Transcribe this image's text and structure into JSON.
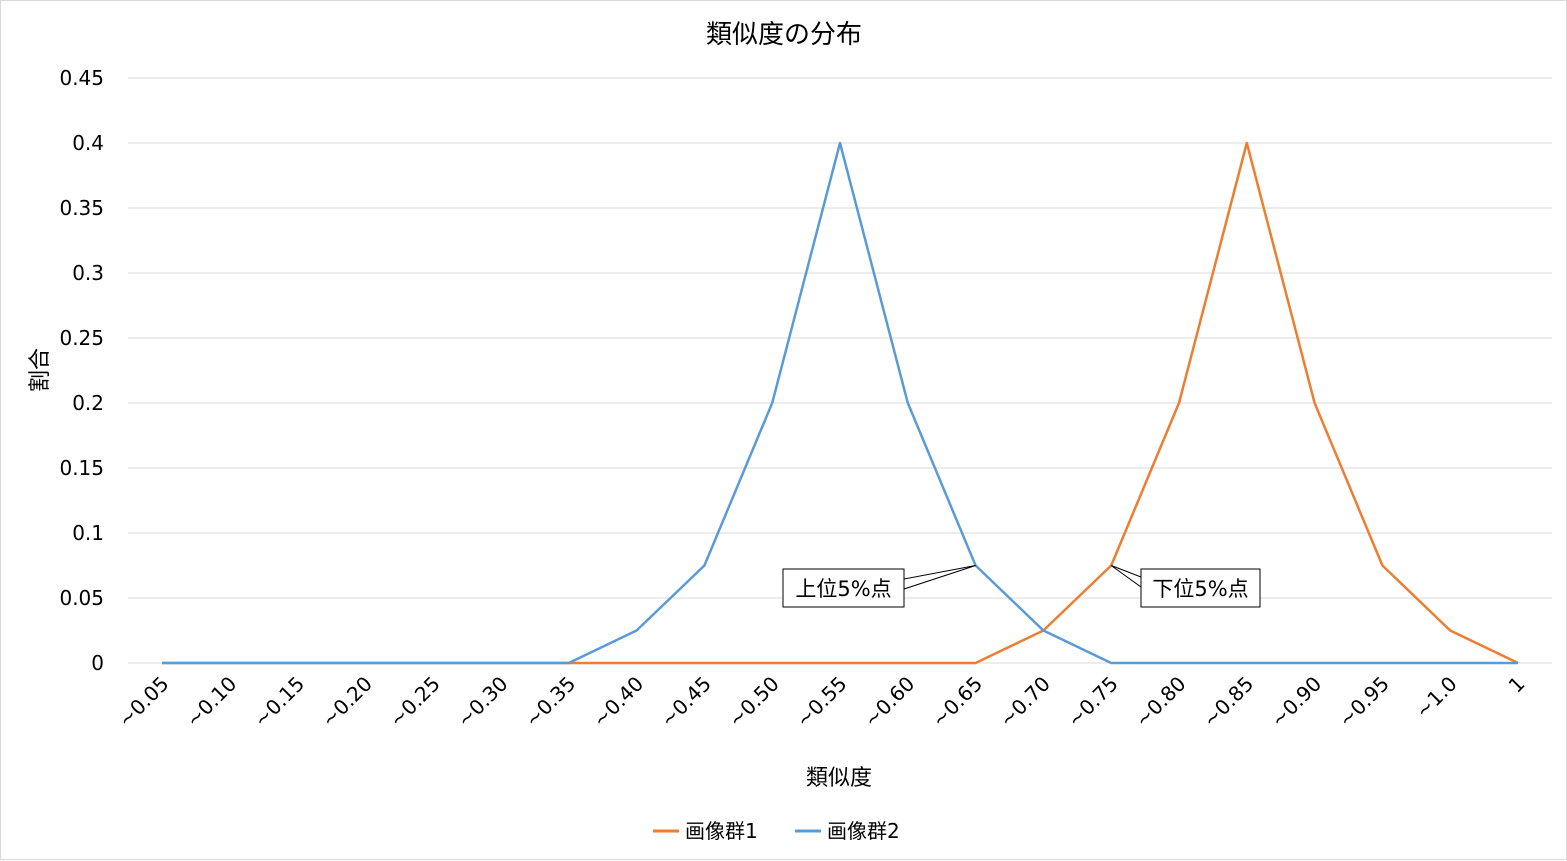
{
  "chart_data": {
    "type": "line",
    "title": "類似度の分布",
    "xlabel": "類似度",
    "ylabel": "割合",
    "ylim": [
      0,
      0.45
    ],
    "yticks": [
      "0",
      "0.05",
      "0.1",
      "0.15",
      "0.2",
      "0.25",
      "0.3",
      "0.35",
      "0.4",
      "0.45"
    ],
    "categories": [
      "~0.05",
      "~0.10",
      "~0.15",
      "~0.20",
      "~0.25",
      "~0.30",
      "~0.35",
      "~0.40",
      "~0.45",
      "~0.50",
      "~0.55",
      "~0.60",
      "~0.65",
      "~0.70",
      "~0.75",
      "~0.80",
      "~0.85",
      "~0.90",
      "~0.95",
      "~1.0",
      "1"
    ],
    "series": [
      {
        "name": "画像群1",
        "color": "#ed7d31",
        "values": [
          0,
          0,
          0,
          0,
          0,
          0,
          0,
          0,
          0,
          0,
          0,
          0,
          0,
          0.025,
          0.075,
          0.2,
          0.4,
          0.2,
          0.075,
          0.025,
          0
        ]
      },
      {
        "name": "画像群2",
        "color": "#5b9bd5",
        "values": [
          0,
          0,
          0,
          0,
          0,
          0,
          0,
          0.025,
          0.075,
          0.2,
          0.4,
          0.2,
          0.075,
          0.025,
          0,
          0,
          0,
          0,
          0,
          0,
          0
        ]
      }
    ],
    "annotations": [
      {
        "text": "上位5%点",
        "series": 1,
        "category": "~0.65"
      },
      {
        "text": "下位5%点",
        "series": 0,
        "category": "~0.75"
      }
    ],
    "grid": true,
    "legend": "bottom",
    "gridColor": "#d9d9d9"
  }
}
